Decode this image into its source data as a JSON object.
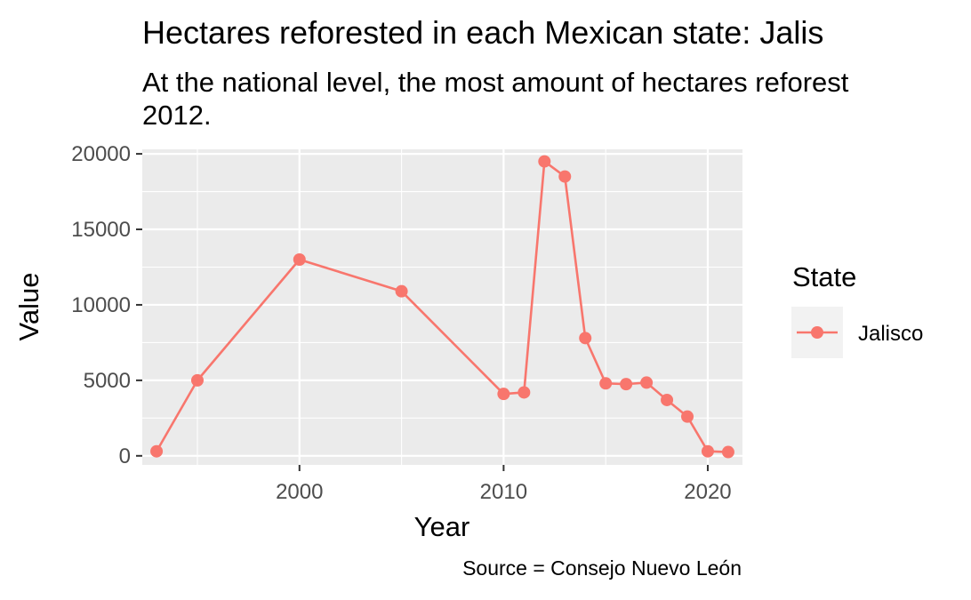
{
  "header": {
    "title": "Hectares reforested in each Mexican state: Jalis",
    "subtitle": "At the national level, the most amount of hectares reforest\n2012."
  },
  "caption": "Source = Consejo Nuevo León",
  "chart_data": {
    "type": "line",
    "title": "Hectares reforested in each Mexican state: Jalis",
    "subtitle": "At the national level, the most amount of hectares reforest\n2012.",
    "xlabel": "Year",
    "ylabel": "Value",
    "xlim": [
      1992.3,
      2021.7
    ],
    "ylim": [
      -600,
      20300
    ],
    "x_ticks": [
      2000,
      2010,
      2020
    ],
    "x_tick_labels": [
      "2000",
      "2010",
      "2020"
    ],
    "x_minor_ticks": [
      1995,
      2005,
      2015
    ],
    "y_ticks": [
      0,
      5000,
      10000,
      15000,
      20000
    ],
    "y_tick_labels": [
      "0",
      "5000",
      "10000",
      "15000",
      "20000"
    ],
    "y_minor_ticks": [
      2500,
      7500,
      12500,
      17500
    ],
    "grid": true,
    "legend": {
      "title": "State",
      "position": "right",
      "entries": [
        "Jalisco"
      ]
    },
    "series": [
      {
        "name": "Jalisco",
        "color": "#F8766D",
        "x": [
          1993,
          1995,
          2000,
          2005,
          2010,
          2011,
          2012,
          2013,
          2014,
          2015,
          2016,
          2017,
          2018,
          2019,
          2020,
          2021
        ],
        "y": [
          300,
          5000,
          13000,
          10900,
          4100,
          4200,
          19500,
          18500,
          7800,
          4800,
          4750,
          4850,
          3700,
          2600,
          300,
          250
        ]
      }
    ],
    "panel_background": "#EBEBEB",
    "gridline_color": "#FFFFFF"
  }
}
